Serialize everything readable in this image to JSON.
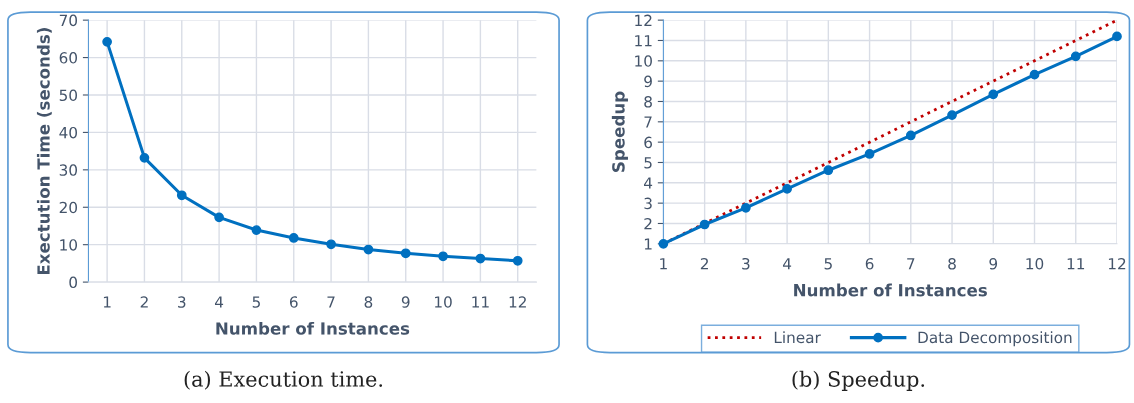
{
  "chart_data": [
    {
      "type": "line",
      "xlabel": "Number of Instances",
      "ylabel": "Exectution Time (seconds)",
      "categories": [
        "1",
        "2",
        "3",
        "4",
        "5",
        "6",
        "7",
        "8",
        "9",
        "10",
        "11",
        "12"
      ],
      "series": [
        {
          "color": "#0070c0",
          "values": [
            64.2,
            33.2,
            23.2,
            17.3,
            13.9,
            11.8,
            10.1,
            8.7,
            7.7,
            6.9,
            6.3,
            5.7
          ]
        }
      ],
      "ylim": [
        0,
        70
      ],
      "yticks": [
        0,
        10,
        20,
        30,
        40,
        50,
        60,
        70
      ],
      "grid": true,
      "marker": "circle",
      "line_style": "solid",
      "legend": false,
      "annotations": [
        "(a) Execution time."
      ]
    },
    {
      "type": "line",
      "xlabel": "Number of Instances",
      "ylabel": "Speedup",
      "x": [
        1,
        2,
        3,
        4,
        5,
        6,
        7,
        8,
        9,
        10,
        11,
        12
      ],
      "series": [
        {
          "name": "Linear",
          "color": "#c00000",
          "values": [
            1,
            2,
            3,
            4,
            5,
            6,
            7,
            8,
            9,
            10,
            11,
            12
          ],
          "marker": "none",
          "line_style": "dotted"
        },
        {
          "name": "Data Decomposition",
          "color": "#0070c0",
          "values": [
            1,
            1.95,
            2.77,
            3.7,
            4.62,
            5.42,
            6.33,
            7.33,
            8.35,
            9.32,
            10.22,
            11.2
          ],
          "marker": "circle",
          "line_style": "solid"
        }
      ],
      "xlim": [
        1,
        12
      ],
      "xticks": [
        1,
        2,
        3,
        4,
        5,
        6,
        7,
        8,
        9,
        10,
        11,
        12
      ],
      "ylim": [
        1,
        12
      ],
      "yticks": [
        1,
        2,
        3,
        4,
        5,
        6,
        7,
        8,
        9,
        10,
        11,
        12
      ],
      "grid": true,
      "legend": "bottom",
      "annotations": [
        "(b) Speedup."
      ]
    }
  ]
}
